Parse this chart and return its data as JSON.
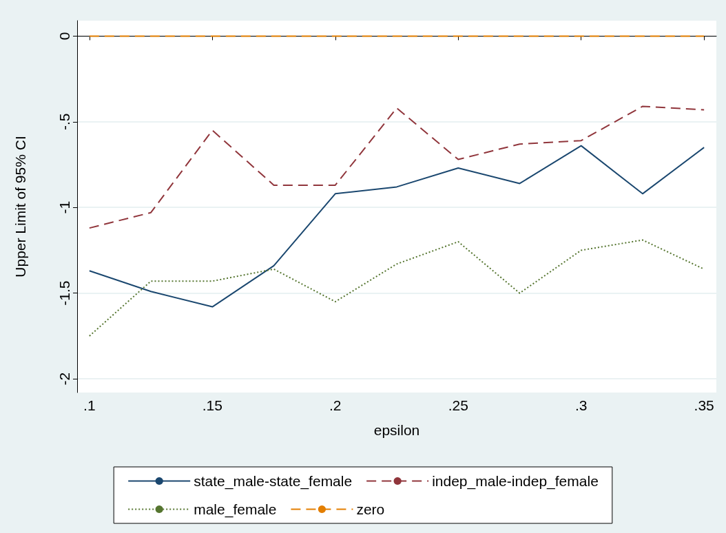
{
  "chart_data": {
    "type": "line",
    "xlabel": "epsilon",
    "ylabel": "Upper Limit of 95% CI",
    "x": [
      0.1,
      0.125,
      0.15,
      0.175,
      0.2,
      0.225,
      0.25,
      0.275,
      0.3,
      0.325,
      0.35
    ],
    "series": [
      {
        "name": "state_male-state_female",
        "color": "#1a476f",
        "line_style": "solid",
        "values": [
          -1.37,
          -1.49,
          -1.58,
          -1.34,
          -0.92,
          -0.88,
          -0.77,
          -0.86,
          -0.64,
          -0.92,
          -0.65
        ]
      },
      {
        "name": "indep_male-indep_female",
        "color": "#90353b",
        "line_style": "dashed",
        "values": [
          -1.12,
          -1.03,
          -0.55,
          -0.87,
          -0.87,
          -0.42,
          -0.72,
          -0.63,
          -0.61,
          -0.41,
          -0.43
        ]
      },
      {
        "name": "male_female",
        "color": "#55752f",
        "line_style": "dotted",
        "values": [
          -1.75,
          -1.43,
          -1.43,
          -1.36,
          -1.55,
          -1.33,
          -1.2,
          -1.5,
          -1.25,
          -1.19,
          -1.36
        ]
      },
      {
        "name": "zero",
        "color": "#e37e00",
        "line_style": "dashed",
        "values": [
          0,
          0,
          0,
          0,
          0,
          0,
          0,
          0,
          0,
          0,
          0
        ]
      }
    ],
    "xlim": [
      0.095,
      0.355
    ],
    "xticks": [
      {
        "value": 0.1,
        "label": ".1"
      },
      {
        "value": 0.15,
        "label": ".15"
      },
      {
        "value": 0.2,
        "label": ".2"
      },
      {
        "value": 0.25,
        "label": ".25"
      },
      {
        "value": 0.3,
        "label": ".3"
      },
      {
        "value": 0.35,
        "label": ".35"
      }
    ],
    "ylim": [
      -2.08,
      0.09
    ],
    "yticks": [
      0,
      {
        "value": -0.5,
        "label": "-.5"
      },
      -1,
      {
        "value": -1.5,
        "label": "-1.5"
      },
      -2
    ],
    "grid": "y",
    "legend": "bottom",
    "marker": "none"
  }
}
